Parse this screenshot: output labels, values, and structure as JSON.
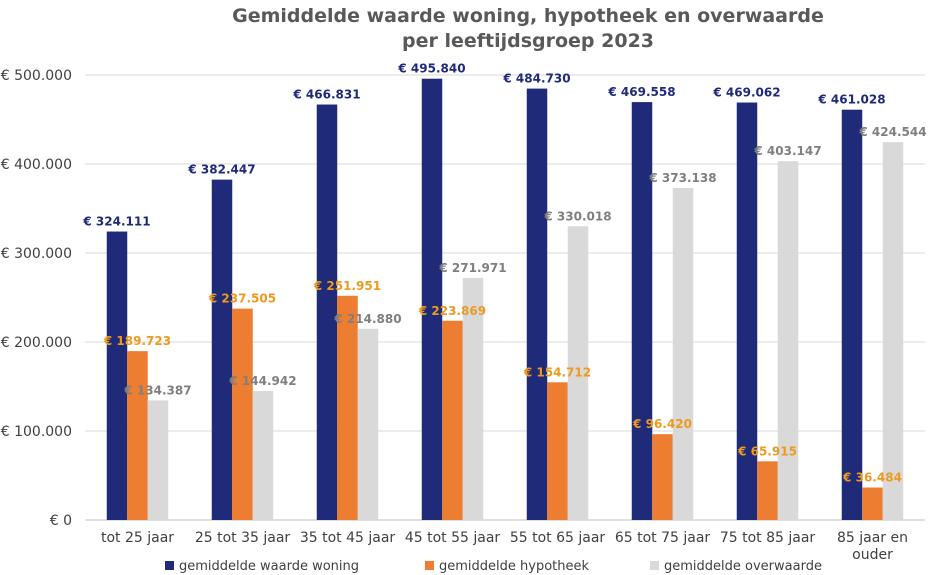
{
  "chart_data": {
    "type": "bar",
    "title": [
      "Gemiddelde waarde woning, hypotheek en overwaarde",
      "per leeftijdsgroep 2023"
    ],
    "categories": [
      [
        "tot 25 jaar"
      ],
      [
        "25 tot 35 jaar"
      ],
      [
        "35 tot 45 jaar"
      ],
      [
        "45 tot 55 jaar"
      ],
      [
        "55 tot 65 jaar"
      ],
      [
        "65 tot 75 jaar"
      ],
      [
        "75 tot 85 jaar"
      ],
      [
        "85 jaar en",
        "ouder"
      ]
    ],
    "ylim": [
      0,
      500000
    ],
    "yticks": [
      0,
      100000,
      200000,
      300000,
      400000,
      500000
    ],
    "ytick_labels": [
      "€ 0",
      "€ 100.000",
      "€ 200.000",
      "€ 300.000",
      "€ 400.000",
      "€ 500.000"
    ],
    "grid": true,
    "legend_position": "bottom",
    "series": [
      {
        "name": "gemiddelde waarde woning",
        "color": "#1F2A78",
        "label_color": "#1F2A78",
        "values": [
          324111,
          382447,
          466831,
          495840,
          484730,
          469558,
          469062,
          461028
        ],
        "labels": [
          "€ 324.111",
          "€ 382.447",
          "€ 466.831",
          "€ 495.840",
          "€ 484.730",
          "€ 469.558",
          "€ 469.062",
          "€ 461.028"
        ]
      },
      {
        "name": "gemiddelde hypotheek",
        "color": "#ED7D31",
        "label_color": "#ED9A1F",
        "values": [
          189723,
          237505,
          251951,
          223869,
          154712,
          96420,
          65915,
          36484
        ],
        "labels": [
          "€ 189.723",
          "€ 237.505",
          "€ 251.951",
          "€ 223.869",
          "€ 154.712",
          "€ 96.420",
          "€ 65.915",
          "€ 36.484"
        ]
      },
      {
        "name": "gemiddelde overwaarde",
        "color": "#D9D9D9",
        "label_color": "#7F7F7F",
        "values": [
          134387,
          144942,
          214880,
          271971,
          330018,
          373138,
          403147,
          424544
        ],
        "labels": [
          "€ 134.387",
          "€ 144.942",
          "€ 214.880",
          "€ 271.971",
          "€ 330.018",
          "€ 373.138",
          "€ 403.147",
          "€ 424.544"
        ]
      }
    ]
  }
}
